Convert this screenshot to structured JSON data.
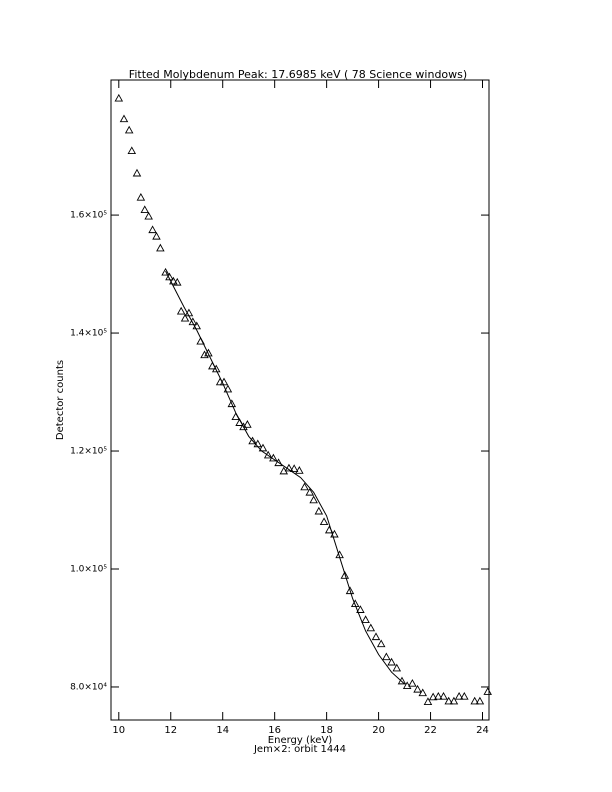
{
  "chart_data": {
    "type": "scatter",
    "title": "Fitted Molybdenum Peak:      17.6985 keV (      78 Science windows)",
    "xlabel": "Energy (keV)",
    "subtitle": "Jem×2: orbit 1444",
    "ylabel": "Detector counts",
    "xlim": [
      9.7,
      24.25
    ],
    "ylim": [
      74400,
      182900
    ],
    "xticks": [
      10,
      12,
      14,
      16,
      18,
      20,
      22,
      24
    ],
    "yticks": [
      {
        "value": 80000,
        "label": "8.0×10⁴"
      },
      {
        "value": 100000,
        "label": "1.0×10⁵"
      },
      {
        "value": 120000,
        "label": "1.2×10⁵"
      },
      {
        "value": 140000,
        "label": "1.4×10⁵"
      },
      {
        "value": 160000,
        "label": "1.6×10⁵"
      }
    ],
    "series": [
      {
        "marker": "triangle",
        "color": "#000000",
        "x": [
          10.0,
          10.2,
          10.4,
          10.5,
          10.7,
          10.85,
          11.0,
          11.15,
          11.3,
          11.45,
          11.6,
          11.8,
          11.95,
          12.1,
          12.25,
          12.4,
          12.55,
          12.7,
          12.85,
          13.0,
          13.15,
          13.3,
          13.45,
          13.6,
          13.75,
          13.9,
          14.05,
          14.2,
          14.35,
          14.5,
          14.65,
          14.8,
          14.95,
          15.15,
          15.35,
          15.55,
          15.75,
          15.95,
          16.15,
          16.35,
          16.55,
          16.75,
          16.95,
          17.15,
          17.35,
          17.5,
          17.7,
          17.9,
          18.1,
          18.3,
          18.5,
          18.7,
          18.9,
          19.1,
          19.3,
          19.5,
          19.7,
          19.9,
          20.1,
          20.3,
          20.5,
          20.7,
          20.9,
          21.1,
          21.3,
          21.5,
          21.7,
          21.9,
          22.1,
          22.3,
          22.5,
          22.7,
          22.9,
          23.1,
          23.3,
          23.7,
          23.9,
          24.2
        ],
        "values": [
          179800,
          176300,
          174400,
          170900,
          167100,
          163000,
          160900,
          159800,
          157500,
          156400,
          154400,
          150300,
          149500,
          148800,
          148600,
          143700,
          142500,
          143400,
          141900,
          141200,
          138600,
          136300,
          136600,
          134400,
          133900,
          131700,
          131700,
          130500,
          128000,
          125800,
          124800,
          124100,
          124500,
          121700,
          121200,
          120500,
          119300,
          118800,
          118000,
          116600,
          117100,
          117000,
          116700,
          113900,
          113000,
          111700,
          109800,
          108000,
          106600,
          105900,
          102400,
          98900,
          96300,
          94100,
          93100,
          91400,
          90000,
          88500,
          87300,
          85100,
          84200,
          83200,
          81000,
          80200,
          80600,
          79600,
          79000,
          77500,
          78300,
          78400,
          78400,
          77600,
          77600,
          78400,
          78400,
          77600,
          77600,
          79200
        ]
      },
      {
        "marker": "line",
        "color": "#000000",
        "x": [
          11.8,
          12.5,
          13,
          13.5,
          14,
          14.5,
          15,
          15.5,
          16,
          16.5,
          17,
          17.5,
          18,
          18.5,
          19,
          19.5,
          20,
          20.5,
          21
        ],
        "values": [
          150500,
          144500,
          140500,
          136000,
          131500,
          126500,
          122500,
          120000,
          118500,
          117000,
          115500,
          113000,
          109000,
          102000,
          95000,
          89500,
          85500,
          82500,
          80500
        ]
      }
    ]
  }
}
